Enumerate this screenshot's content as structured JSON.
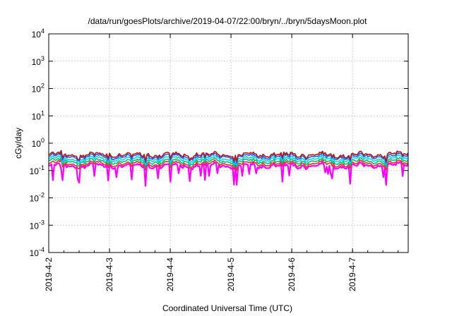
{
  "chart_data": {
    "type": "line",
    "title": "/data/run/goesPlots/archive/2019-04-07/22:00/bryn/../bryn/5daysMoon.plot",
    "xlabel": "Coordinated Universal Time (UTC)",
    "ylabel": "cGy/day",
    "y_scale": "log",
    "ylim": [
      0.0001,
      10000
    ],
    "y_ticks": [
      {
        "value": 0.0001,
        "base": "10",
        "exp": "-4"
      },
      {
        "value": 0.001,
        "base": "10",
        "exp": "-3"
      },
      {
        "value": 0.01,
        "base": "10",
        "exp": "-2"
      },
      {
        "value": 0.1,
        "base": "10",
        "exp": "-1"
      },
      {
        "value": 1,
        "base": "10",
        "exp": "0"
      },
      {
        "value": 10,
        "base": "10",
        "exp": "1"
      },
      {
        "value": 100,
        "base": "10",
        "exp": "2"
      },
      {
        "value": 1000,
        "base": "10",
        "exp": "3"
      },
      {
        "value": 10000,
        "base": "10",
        "exp": "4"
      }
    ],
    "x_ticks": [
      "2019-4-2",
      "2019-4-3",
      "2019-4-4",
      "2019-4-5",
      "2019-4-6",
      "2019-4-7"
    ],
    "x_start": "2019-04-02T00:00",
    "x_end": "2019-04-07T22:00",
    "grid": true,
    "series": [
      {
        "color": "#ff00ff",
        "typical_value": 0.15
      },
      {
        "color": "#ff2a2a",
        "typical_value": 0.18
      },
      {
        "color": "#00c070",
        "typical_value": 0.22
      },
      {
        "color": "#00d8e8",
        "typical_value": 0.27
      },
      {
        "color": "#1560ff",
        "typical_value": 0.33
      },
      {
        "color": "#c01010",
        "typical_value": 0.38
      }
    ]
  }
}
